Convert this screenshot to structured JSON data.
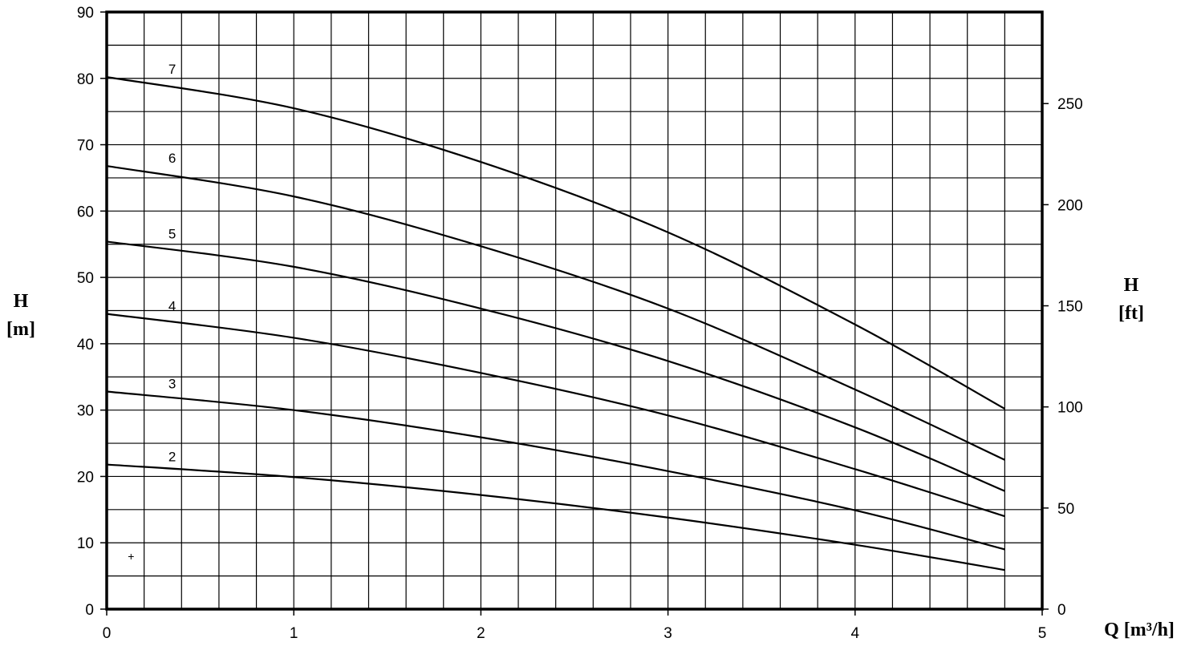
{
  "chart_data": {
    "type": "line",
    "x_label": "Q [m³/h]",
    "y_label_left": {
      "line1": "H",
      "line2": "[m]"
    },
    "y_label_right": {
      "line1": "H",
      "line2": "[ft]"
    },
    "xlim": [
      0,
      5
    ],
    "ylim": [
      0,
      90
    ],
    "y_right_lim_ft": [
      0,
      295.3
    ],
    "x_ticks": [
      "0",
      "1",
      "2",
      "3",
      "4",
      "5"
    ],
    "y_ticks": [
      "0",
      "10",
      "20",
      "30",
      "40",
      "50",
      "60",
      "70",
      "80",
      "90"
    ],
    "y_right_ticks": [
      "0",
      "50",
      "100",
      "150",
      "200",
      "250"
    ],
    "grid": true,
    "x": [
      0,
      1,
      2,
      3,
      4,
      4.8
    ],
    "series": [
      {
        "name": "2",
        "values": [
          21.8,
          19.9,
          17.2,
          13.8,
          9.7,
          5.9
        ]
      },
      {
        "name": "3",
        "values": [
          32.8,
          30.0,
          25.9,
          20.8,
          14.9,
          9.0
        ]
      },
      {
        "name": "4",
        "values": [
          44.5,
          40.9,
          35.6,
          29.2,
          21.1,
          14.0
        ]
      },
      {
        "name": "5",
        "values": [
          55.4,
          51.6,
          45.3,
          37.4,
          27.4,
          17.8
        ]
      },
      {
        "name": "6",
        "values": [
          66.8,
          62.2,
          54.7,
          45.3,
          33.1,
          22.5
        ]
      },
      {
        "name": "7",
        "values": [
          80.2,
          75.5,
          67.4,
          56.8,
          42.9,
          30.2
        ]
      }
    ],
    "marker": {
      "symbol": "+",
      "x": 0.13,
      "y": 8
    }
  }
}
